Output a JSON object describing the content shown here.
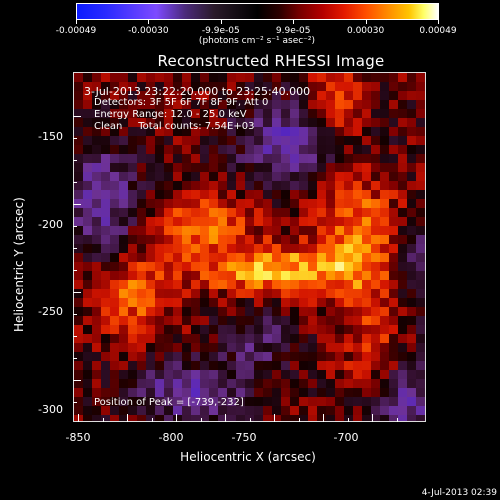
{
  "colorbar": {
    "ticks": [
      "-0.00049",
      "-0.00030",
      "-9.9e-05",
      "9.9e-05",
      "0.00030",
      "0.00049"
    ],
    "units": "(photons cm⁻² s⁻¹ asec⁻²)"
  },
  "title": "Reconstructed RHESSI Image",
  "info": {
    "time_range": "3-Jul-2013 23:22:20.000 to 23:25:40.000",
    "detectors": "Detectors: 3F 5F 6F 7F 8F 9F, Att 0",
    "energy": "Energy Range: 12.0 - 25.0 keV",
    "clean": "Clean     Total counts: 7.54E+03",
    "peak": "Position of Peak = [-739,-232]"
  },
  "axes": {
    "xlabel": "Heliocentric X (arcsec)",
    "ylabel": "Heliocentric Y (arcsec)",
    "xticks": [
      "-850",
      "-800",
      "-750",
      "-700"
    ],
    "yticks": [
      "-150",
      "-200",
      "-250",
      "-300"
    ]
  },
  "footer": {
    "timestamp": "4-Jul-2013 02:39"
  },
  "colors": {
    "background": "#000000",
    "text": "#ffffff",
    "colormap": "blue-black-red-yellow-white"
  }
}
